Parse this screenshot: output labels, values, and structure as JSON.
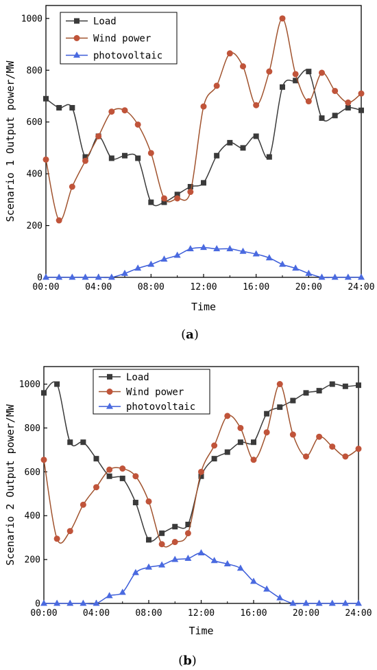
{
  "colors": {
    "load": "#3a3a3a",
    "wind": "#a0522d",
    "wind_marker": "#c0543a",
    "pv": "#3a5bd8",
    "pv_marker": "#4a6ae0"
  },
  "chart_data": [
    {
      "type": "line",
      "panel_label": "a",
      "xlabel": "Time",
      "ylabel": "Scenario 1 Output power/MW",
      "x_ticks": [
        "00:00",
        "04:00",
        "08:00",
        "12:00",
        "16:00",
        "20:00",
        "24:00"
      ],
      "xlim": [
        0,
        24
      ],
      "ylim": [
        0,
        1050
      ],
      "y_ticks": [
        0,
        200,
        400,
        600,
        800,
        1000
      ],
      "legend_position": "top-left",
      "x": [
        0,
        1,
        2,
        3,
        4,
        5,
        6,
        7,
        8,
        9,
        10,
        11,
        12,
        13,
        14,
        15,
        16,
        17,
        18,
        19,
        20,
        21,
        22,
        23,
        24
      ],
      "series": [
        {
          "name": "Load",
          "marker": "square",
          "values": [
            690,
            655,
            655,
            465,
            545,
            460,
            470,
            460,
            290,
            290,
            320,
            350,
            365,
            470,
            520,
            500,
            545,
            465,
            735,
            760,
            795,
            615,
            625,
            655,
            645
          ]
        },
        {
          "name": "Wind power",
          "marker": "circle",
          "values": [
            455,
            220,
            350,
            450,
            545,
            640,
            645,
            590,
            480,
            305,
            305,
            330,
            660,
            740,
            865,
            815,
            665,
            795,
            1000,
            785,
            680,
            790,
            720,
            675,
            710
          ]
        },
        {
          "name": "photovoltaic",
          "marker": "triangle",
          "values": [
            0,
            0,
            0,
            0,
            0,
            0,
            15,
            35,
            50,
            70,
            85,
            110,
            115,
            110,
            110,
            100,
            90,
            75,
            50,
            35,
            15,
            0,
            0,
            0,
            0
          ]
        }
      ]
    },
    {
      "type": "line",
      "panel_label": "b",
      "xlabel": "Time",
      "ylabel": "Scenario 2 Output power/MW",
      "x_ticks": [
        "00:00",
        "04:00",
        "08:00",
        "12:00",
        "16:00",
        "20:00",
        "24:00"
      ],
      "xlim": [
        0,
        24
      ],
      "ylim": [
        0,
        1080
      ],
      "y_ticks": [
        0,
        200,
        400,
        600,
        800,
        1000
      ],
      "legend_position": "top-center",
      "x": [
        0,
        1,
        2,
        3,
        4,
        5,
        6,
        7,
        8,
        9,
        10,
        11,
        12,
        13,
        14,
        15,
        16,
        17,
        18,
        19,
        20,
        21,
        22,
        23,
        24
      ],
      "series": [
        {
          "name": "Load",
          "marker": "square",
          "values": [
            960,
            1000,
            735,
            735,
            660,
            580,
            570,
            460,
            290,
            320,
            350,
            360,
            580,
            660,
            690,
            735,
            735,
            865,
            895,
            925,
            960,
            970,
            1000,
            990,
            995
          ]
        },
        {
          "name": "Wind power",
          "marker": "circle",
          "values": [
            655,
            295,
            330,
            450,
            530,
            610,
            615,
            580,
            465,
            270,
            280,
            320,
            600,
            720,
            855,
            800,
            655,
            780,
            1000,
            770,
            670,
            760,
            715,
            670,
            705
          ]
        },
        {
          "name": "photovoltaic",
          "marker": "triangle",
          "values": [
            0,
            0,
            0,
            0,
            0,
            35,
            50,
            140,
            165,
            175,
            200,
            205,
            230,
            195,
            180,
            160,
            100,
            65,
            25,
            0,
            0,
            0,
            0,
            0,
            0
          ]
        }
      ]
    }
  ]
}
